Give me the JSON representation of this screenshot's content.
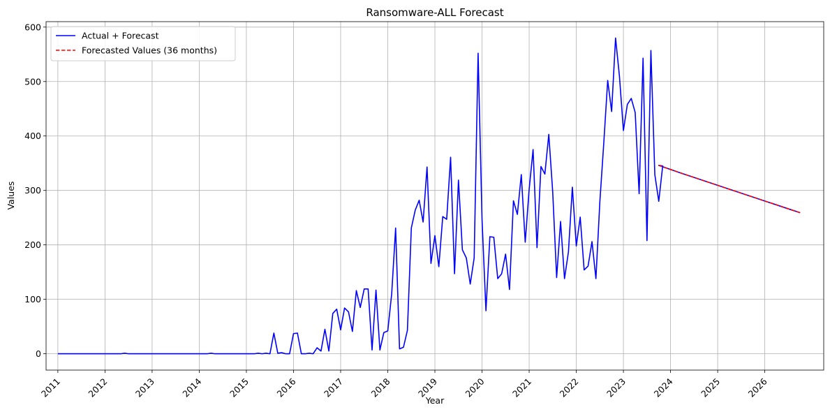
{
  "chart_data": {
    "type": "line",
    "title": "Ransomware-ALL Forecast",
    "xlabel": "Year",
    "ylabel": "Values",
    "x_ticks": [
      "2011",
      "2012",
      "2013",
      "2014",
      "2015",
      "2016",
      "2017",
      "2018",
      "2019",
      "2020",
      "2021",
      "2022",
      "2023",
      "2024",
      "2025",
      "2026"
    ],
    "y_ticks": [
      0,
      100,
      200,
      300,
      400,
      500,
      600
    ],
    "xlim": [
      2010.75,
      2027.25
    ],
    "ylim": [
      -30,
      610
    ],
    "grid": true,
    "legend_position": "top-left",
    "series": [
      {
        "name": "Actual + Forecast",
        "color": "#0000ff",
        "style": "solid",
        "start": "2011-01",
        "values": [
          0,
          0,
          0,
          0,
          0,
          0,
          0,
          0,
          0,
          0,
          0,
          0,
          0,
          0,
          0,
          0,
          0,
          1,
          0,
          0,
          0,
          0,
          0,
          0,
          0,
          0,
          0,
          0,
          0,
          0,
          0,
          0,
          0,
          0,
          0,
          0,
          0,
          0,
          0,
          1,
          0,
          0,
          0,
          0,
          0,
          0,
          0,
          0,
          0,
          0,
          0,
          1,
          0,
          1,
          0,
          38,
          1,
          2,
          0,
          0,
          37,
          38,
          0,
          0,
          1,
          0,
          11,
          5,
          45,
          5,
          74,
          82,
          44,
          84,
          77,
          41,
          116,
          85,
          119,
          119,
          7,
          117,
          7,
          39,
          42,
          110,
          231,
          9,
          12,
          43,
          231,
          264,
          282,
          242,
          343,
          166,
          217,
          160,
          252,
          247,
          361,
          147,
          319,
          191,
          176,
          128,
          176,
          552,
          247,
          79,
          215,
          214,
          138,
          147,
          183,
          118,
          281,
          256,
          329,
          205,
          302,
          375,
          195,
          344,
          330,
          403,
          297,
          140,
          243,
          138,
          187,
          306,
          198,
          251,
          154,
          161,
          206,
          138,
          279,
          387,
          502,
          445,
          580,
          509,
          410,
          458,
          469,
          443,
          294,
          543,
          208,
          557,
          329,
          280,
          345
        ]
      },
      {
        "name": "Forecasted Values (36 months)",
        "color": "#ff0000",
        "style": "dashed",
        "start": "2023-10",
        "values": [
          346,
          343.5,
          341,
          338.5,
          336,
          333.5,
          331,
          328.6,
          326.2,
          323.8,
          321.4,
          319,
          316.6,
          314.2,
          311.8,
          309.4,
          307,
          304.6,
          302.2,
          299.8,
          297.4,
          295,
          292.6,
          290.2,
          287.8,
          285.4,
          283,
          280.6,
          278.2,
          275.8,
          273.4,
          271,
          268.6,
          266.2,
          263.8,
          261.4,
          259
        ]
      }
    ]
  }
}
